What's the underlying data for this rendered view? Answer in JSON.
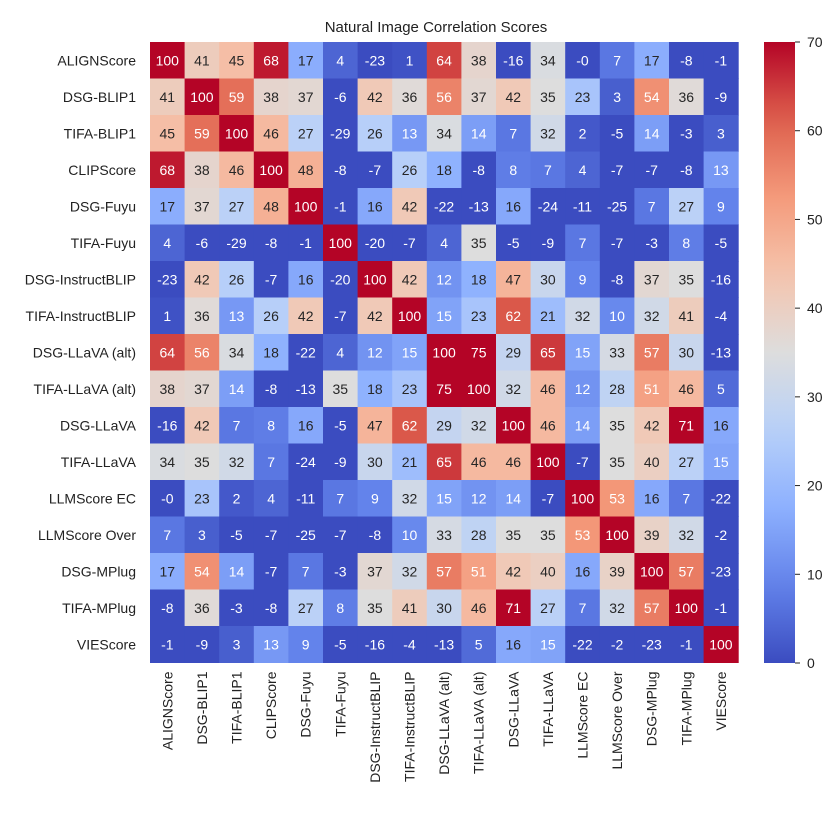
{
  "chart_data": {
    "type": "heatmap",
    "title": "Natural Image Correlation Scores",
    "labels": [
      "ALIGNScore",
      "DSG-BLIP1",
      "TIFA-BLIP1",
      "CLIPScore",
      "DSG-Fuyu",
      "TIFA-Fuyu",
      "DSG-InstructBLIP",
      "TIFA-InstructBLIP",
      "DSG-LLaVA (alt)",
      "TIFA-LLaVA (alt)",
      "DSG-LLaVA",
      "TIFA-LLaVA",
      "LLMScore EC",
      "LLMScore Over",
      "DSG-MPlug",
      "TIFA-MPlug",
      "VIEScore"
    ],
    "matrix": [
      [
        100,
        41,
        45,
        68,
        17,
        4,
        -23,
        1,
        64,
        38,
        -16,
        34,
        0,
        7,
        17,
        -8,
        -1
      ],
      [
        41,
        100,
        59,
        38,
        37,
        -6,
        42,
        36,
        56,
        37,
        42,
        35,
        23,
        3,
        54,
        36,
        -9
      ],
      [
        45,
        59,
        100,
        46,
        27,
        -29,
        26,
        13,
        34,
        14,
        7,
        32,
        2,
        -5,
        14,
        -3,
        3
      ],
      [
        68,
        38,
        46,
        100,
        48,
        -8,
        -7,
        26,
        18,
        -8,
        8,
        7,
        4,
        -7,
        -7,
        -8,
        13
      ],
      [
        17,
        37,
        27,
        48,
        100,
        -1,
        16,
        42,
        -22,
        -13,
        16,
        -24,
        -11,
        -25,
        7,
        27,
        9
      ],
      [
        4,
        -6,
        -29,
        -8,
        -1,
        100,
        -20,
        -7,
        4,
        35,
        -5,
        -9,
        7,
        -7,
        -3,
        8,
        -5
      ],
      [
        -23,
        42,
        26,
        -7,
        16,
        -20,
        100,
        42,
        12,
        18,
        47,
        30,
        9,
        -8,
        37,
        35,
        -16
      ],
      [
        1,
        36,
        13,
        26,
        42,
        -7,
        42,
        100,
        15,
        23,
        62,
        21,
        32,
        10,
        32,
        41,
        -4
      ],
      [
        64,
        56,
        34,
        18,
        -22,
        4,
        12,
        15,
        100,
        75,
        29,
        65,
        15,
        33,
        57,
        30,
        -13
      ],
      [
        38,
        37,
        14,
        -8,
        -13,
        35,
        18,
        23,
        75,
        100,
        32,
        46,
        12,
        28,
        51,
        46,
        5
      ],
      [
        -16,
        42,
        7,
        8,
        16,
        -5,
        47,
        62,
        29,
        32,
        100,
        46,
        14,
        35,
        42,
        71,
        16
      ],
      [
        34,
        35,
        32,
        7,
        -24,
        -9,
        30,
        21,
        65,
        46,
        46,
        100,
        -7,
        35,
        40,
        27,
        15
      ],
      [
        0,
        23,
        2,
        4,
        -11,
        7,
        9,
        32,
        15,
        12,
        14,
        -7,
        100,
        53,
        16,
        7,
        -22
      ],
      [
        7,
        3,
        -5,
        -7,
        -25,
        -7,
        -8,
        10,
        33,
        28,
        35,
        35,
        53,
        100,
        39,
        32,
        -2
      ],
      [
        17,
        54,
        14,
        -7,
        7,
        -3,
        37,
        32,
        57,
        51,
        42,
        40,
        16,
        39,
        100,
        57,
        -23
      ],
      [
        -8,
        36,
        -3,
        -8,
        27,
        8,
        35,
        41,
        30,
        46,
        71,
        27,
        7,
        32,
        57,
        100,
        -1
      ],
      [
        -1,
        -9,
        3,
        13,
        9,
        -5,
        -16,
        -4,
        -13,
        5,
        16,
        15,
        -22,
        -2,
        -23,
        -1,
        100
      ]
    ],
    "cell_text": [
      [
        "100",
        "41",
        "45",
        "68",
        "17",
        "4",
        "-23",
        "1",
        "64",
        "38",
        "-16",
        "34",
        "-0",
        "7",
        "17",
        "-8",
        "-1"
      ],
      [
        "41",
        "100",
        "59",
        "38",
        "37",
        "-6",
        "42",
        "36",
        "56",
        "37",
        "42",
        "35",
        "23",
        "3",
        "54",
        "36",
        "-9"
      ],
      [
        "45",
        "59",
        "100",
        "46",
        "27",
        "-29",
        "26",
        "13",
        "34",
        "14",
        "7",
        "32",
        "2",
        "-5",
        "14",
        "-3",
        "3"
      ],
      [
        "68",
        "38",
        "46",
        "100",
        "48",
        "-8",
        "-7",
        "26",
        "18",
        "-8",
        "8",
        "7",
        "4",
        "-7",
        "-7",
        "-8",
        "13"
      ],
      [
        "17",
        "37",
        "27",
        "48",
        "100",
        "-1",
        "16",
        "42",
        "-22",
        "-13",
        "16",
        "-24",
        "-11",
        "-25",
        "7",
        "27",
        "9"
      ],
      [
        "4",
        "-6",
        "-29",
        "-8",
        "-1",
        "100",
        "-20",
        "-7",
        "4",
        "35",
        "-5",
        "-9",
        "7",
        "-7",
        "-3",
        "8",
        "-5"
      ],
      [
        "-23",
        "42",
        "26",
        "-7",
        "16",
        "-20",
        "100",
        "42",
        "12",
        "18",
        "47",
        "30",
        "9",
        "-8",
        "37",
        "35",
        "-16"
      ],
      [
        "1",
        "36",
        "13",
        "26",
        "42",
        "-7",
        "42",
        "100",
        "15",
        "23",
        "62",
        "21",
        "32",
        "10",
        "32",
        "41",
        "-4"
      ],
      [
        "64",
        "56",
        "34",
        "18",
        "-22",
        "4",
        "12",
        "15",
        "100",
        "75",
        "29",
        "65",
        "15",
        "33",
        "57",
        "30",
        "-13"
      ],
      [
        "38",
        "37",
        "14",
        "-8",
        "-13",
        "35",
        "18",
        "23",
        "75",
        "100",
        "32",
        "46",
        "12",
        "28",
        "51",
        "46",
        "5"
      ],
      [
        "-16",
        "42",
        "7",
        "8",
        "16",
        "-5",
        "47",
        "62",
        "29",
        "32",
        "100",
        "46",
        "14",
        "35",
        "42",
        "71",
        "16"
      ],
      [
        "34",
        "35",
        "32",
        "7",
        "-24",
        "-9",
        "30",
        "21",
        "65",
        "46",
        "46",
        "100",
        "-7",
        "35",
        "40",
        "27",
        "15"
      ],
      [
        "-0",
        "23",
        "2",
        "4",
        "-11",
        "7",
        "9",
        "32",
        "15",
        "12",
        "14",
        "-7",
        "100",
        "53",
        "16",
        "7",
        "-22"
      ],
      [
        "7",
        "3",
        "-5",
        "-7",
        "-25",
        "-7",
        "-8",
        "10",
        "33",
        "28",
        "35",
        "35",
        "53",
        "100",
        "39",
        "32",
        "-2"
      ],
      [
        "17",
        "54",
        "14",
        "-7",
        "7",
        "-3",
        "37",
        "32",
        "57",
        "51",
        "42",
        "40",
        "16",
        "39",
        "100",
        "57",
        "-23"
      ],
      [
        "-8",
        "36",
        "-3",
        "-8",
        "27",
        "8",
        "35",
        "41",
        "30",
        "46",
        "71",
        "27",
        "7",
        "32",
        "57",
        "100",
        "-1"
      ],
      [
        "-1",
        "-9",
        "3",
        "13",
        "9",
        "-5",
        "-16",
        "-4",
        "-13",
        "5",
        "16",
        "15",
        "-22",
        "-2",
        "-23",
        "-1",
        "100"
      ]
    ],
    "colormap": "coolwarm",
    "vmin": 0,
    "vmax": 70,
    "colorbar_ticks": [
      "0",
      "10",
      "20",
      "30",
      "40",
      "50",
      "60",
      "70"
    ],
    "colors": {
      "low": "#3b4cc0",
      "mid": "#dddddd",
      "high": "#b40426",
      "text_dark": "#262626",
      "text_light": "#ffffff"
    }
  }
}
